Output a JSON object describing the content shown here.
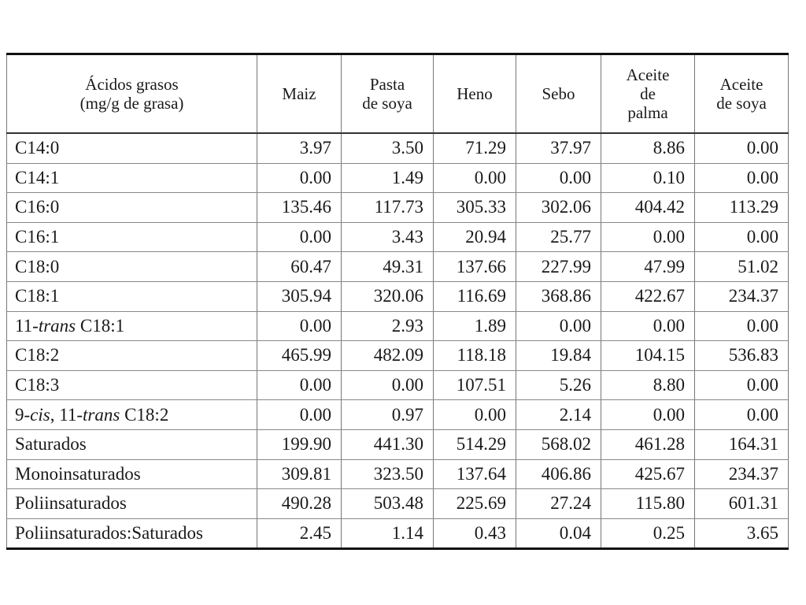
{
  "table": {
    "header": {
      "label_col": [
        "Ácidos grasos",
        "(mg/g de grasa)"
      ],
      "columns": [
        [
          "Maiz"
        ],
        [
          "Pasta",
          "de soya"
        ],
        [
          "Heno"
        ],
        [
          "Sebo"
        ],
        [
          "Aceite",
          "de",
          "palma"
        ],
        [
          "Aceite",
          "de soya"
        ]
      ]
    },
    "rows": [
      {
        "label": [
          "C14:0"
        ],
        "values": [
          "3.97",
          "3.50",
          "71.29",
          "37.97",
          "8.86",
          "0.00"
        ]
      },
      {
        "label": [
          "C14:1"
        ],
        "values": [
          "0.00",
          "1.49",
          "0.00",
          "0.00",
          "0.10",
          "0.00"
        ]
      },
      {
        "label": [
          "C16:0"
        ],
        "values": [
          "135.46",
          "117.73",
          "305.33",
          "302.06",
          "404.42",
          "113.29"
        ]
      },
      {
        "label": [
          "C16:1"
        ],
        "values": [
          "0.00",
          "3.43",
          "20.94",
          "25.77",
          "0.00",
          "0.00"
        ]
      },
      {
        "label": [
          "C18:0"
        ],
        "values": [
          "60.47",
          "49.31",
          "137.66",
          "227.99",
          "47.99",
          "51.02"
        ]
      },
      {
        "label": [
          "C18:1"
        ],
        "values": [
          "305.94",
          "320.06",
          "116.69",
          "368.86",
          "422.67",
          "234.37"
        ]
      },
      {
        "label": [
          "11-",
          "trans",
          " C18:1"
        ],
        "values": [
          "0.00",
          "2.93",
          "1.89",
          "0.00",
          "0.00",
          "0.00"
        ]
      },
      {
        "label": [
          "C18:2"
        ],
        "values": [
          "465.99",
          "482.09",
          "118.18",
          "19.84",
          "104.15",
          "536.83"
        ]
      },
      {
        "label": [
          "C18:3"
        ],
        "values": [
          "0.00",
          "0.00",
          "107.51",
          "5.26",
          "8.80",
          "0.00"
        ]
      },
      {
        "label": [
          "9-",
          "cis",
          ", 11-",
          "trans",
          " C18:2"
        ],
        "values": [
          "0.00",
          "0.97",
          "0.00",
          "2.14",
          "0.00",
          "0.00"
        ]
      },
      {
        "label": [
          "Saturados"
        ],
        "values": [
          "199.90",
          "441.30",
          "514.29",
          "568.02",
          "461.28",
          "164.31"
        ]
      },
      {
        "label": [
          "Monoinsaturados"
        ],
        "values": [
          "309.81",
          "323.50",
          "137.64",
          "406.86",
          "425.67",
          "234.37"
        ]
      },
      {
        "label": [
          "Poliinsaturados"
        ],
        "values": [
          "490.28",
          "503.48",
          "225.69",
          "27.24",
          "115.80",
          "601.31"
        ]
      },
      {
        "label": [
          "Poliinsaturados:Saturados"
        ],
        "values": [
          "2.45",
          "1.14",
          "0.43",
          "0.04",
          "0.25",
          "3.65"
        ]
      }
    ]
  }
}
